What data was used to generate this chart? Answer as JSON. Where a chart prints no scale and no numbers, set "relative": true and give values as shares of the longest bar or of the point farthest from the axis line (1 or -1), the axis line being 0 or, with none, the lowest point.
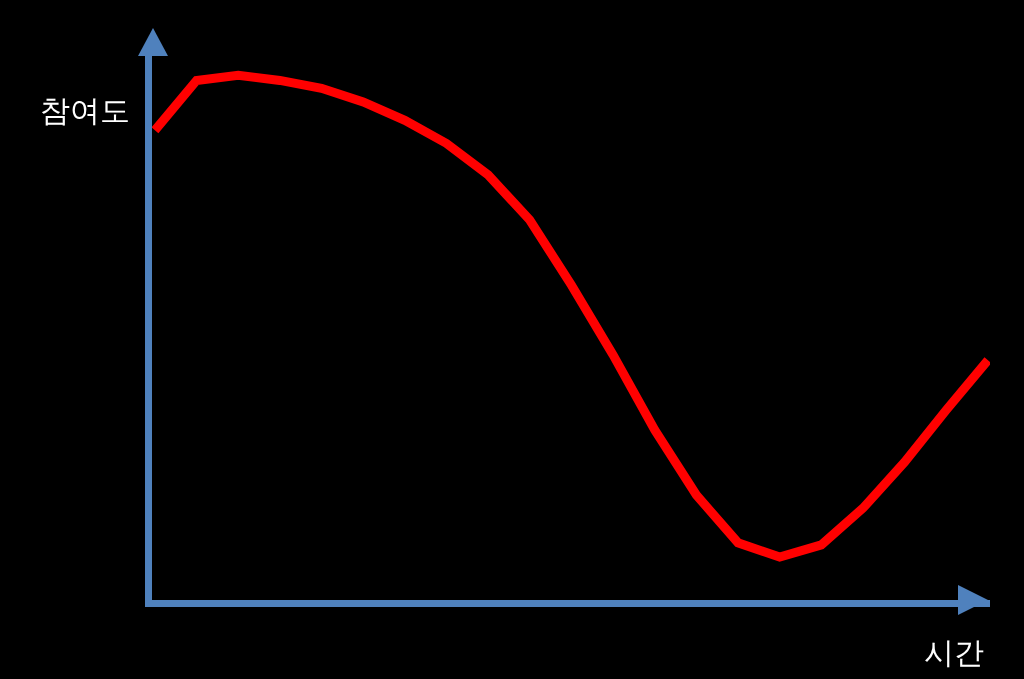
{
  "chart_data": {
    "type": "line",
    "relative": true,
    "xlabel": "시간",
    "ylabel": "참여도",
    "categories": [
      null,
      null,
      null,
      null,
      null,
      null,
      null,
      null,
      null,
      null,
      null,
      null,
      null,
      null,
      null,
      null,
      null,
      null,
      null,
      null,
      null
    ],
    "series": [
      {
        "color": "#ff0000",
        "values": [
          0.895,
          0.99,
          1,
          0.99,
          0.975,
          0.949,
          0.914,
          0.87,
          0.81,
          0.724,
          0.6,
          0.467,
          0.324,
          0.2,
          0.109,
          0.082,
          0.105,
          0.175,
          0.263,
          0.362,
          0.457
        ]
      }
    ],
    "marker": "none",
    "line_style": "solid"
  }
}
